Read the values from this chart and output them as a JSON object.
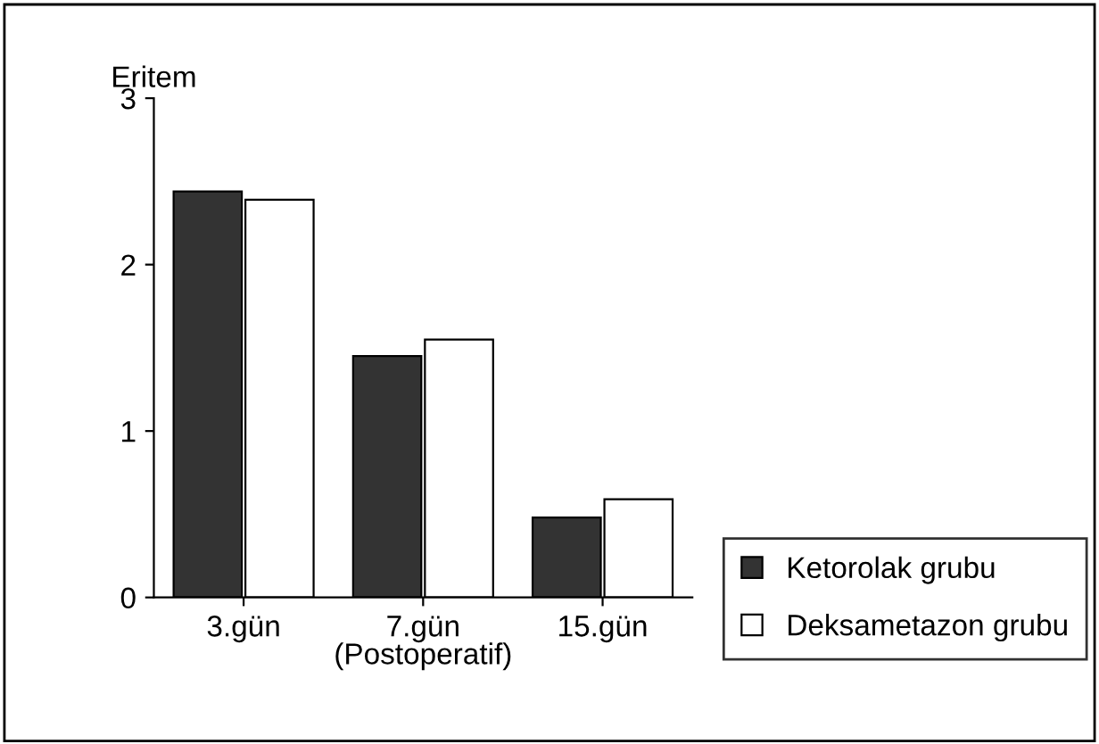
{
  "chart_data": {
    "type": "bar",
    "ylabel": "Eritem",
    "xlabel": "(Postoperatif)",
    "categories": [
      "3.gün",
      "7.gün",
      "15.gün"
    ],
    "series": [
      {
        "name": "Ketorolak grubu",
        "color": "#333333",
        "values": [
          2.44,
          1.45,
          0.48
        ]
      },
      {
        "name": "Deksametazon grubu",
        "color": "#ffffff",
        "values": [
          2.39,
          1.55,
          0.59
        ]
      }
    ],
    "ylim": [
      0,
      3
    ],
    "yticks": [
      0,
      1,
      2,
      3
    ],
    "grid": false,
    "legend": "bottom right"
  }
}
